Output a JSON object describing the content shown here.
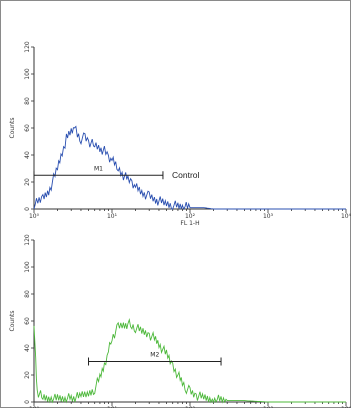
{
  "chart_data": [
    {
      "type": "line",
      "title": "",
      "xlabel": "FL 1-H",
      "ylabel": "Counts",
      "xscale": "log",
      "xlim": [
        1,
        10000
      ],
      "ylim": [
        0,
        120
      ],
      "yticks": [
        0,
        20,
        40,
        60,
        80,
        100,
        120
      ],
      "xticks": [
        1,
        10,
        100,
        1000,
        10000
      ],
      "xtick_labels": [
        "10⁰",
        "10¹",
        "10²",
        "10³",
        "10⁴"
      ],
      "grid": false,
      "series": [
        {
          "name": "Control",
          "color": "#2a4fb0",
          "x": [
            1,
            1.3,
            1.6,
            2,
            2.3,
            2.6,
            3,
            3.3,
            3.6,
            4,
            4.5,
            5,
            6,
            7,
            8,
            9,
            10,
            12,
            14,
            16,
            18,
            20,
            25,
            30,
            35,
            40,
            50,
            60,
            70,
            80,
            100,
            120,
            150,
            200,
            300,
            500,
            1000,
            10000
          ],
          "y": [
            3,
            8,
            15,
            30,
            42,
            52,
            58,
            60,
            55,
            52,
            53,
            50,
            47,
            45,
            43,
            38,
            36,
            30,
            25,
            22,
            20,
            17,
            12,
            9,
            7,
            6,
            4,
            3,
            2,
            2,
            1,
            1,
            1,
            0,
            0,
            0,
            0,
            0
          ]
        }
      ],
      "gates": [
        {
          "label": "M1",
          "x_start": 1,
          "x_end": 45,
          "y": 25
        }
      ],
      "annotations": [
        "Control"
      ]
    },
    {
      "type": "line",
      "title": "",
      "xlabel": "",
      "ylabel": "Counts",
      "xscale": "log",
      "xlim": [
        1,
        10000
      ],
      "ylim": [
        0,
        120
      ],
      "yticks": [
        0,
        20,
        40,
        60,
        80,
        100,
        120
      ],
      "xticks": [
        1,
        10,
        100,
        1000,
        10000
      ],
      "xtick_labels": [
        "10⁰",
        "10¹",
        "10²",
        "10³",
        "10⁴"
      ],
      "grid": false,
      "series": [
        {
          "color": "#4cb83a",
          "x": [
            1,
            1.05,
            1.1,
            1.3,
            1.6,
            2,
            3,
            4,
            5,
            6,
            7,
            8,
            9,
            10,
            12,
            14,
            16,
            18,
            20,
            25,
            30,
            35,
            40,
            50,
            60,
            70,
            80,
            90,
            100,
            120,
            150,
            200,
            300,
            500,
            1000,
            10000
          ],
          "y": [
            60,
            30,
            8,
            3,
            3,
            2,
            3,
            4,
            6,
            10,
            18,
            28,
            38,
            48,
            55,
            57,
            58,
            56,
            55,
            52,
            50,
            47,
            43,
            35,
            27,
            20,
            14,
            10,
            8,
            5,
            3,
            2,
            1,
            1,
            0,
            0
          ]
        }
      ],
      "gates": [
        {
          "label": "M2",
          "x_start": 5,
          "x_end": 250,
          "y": 30
        }
      ]
    }
  ]
}
